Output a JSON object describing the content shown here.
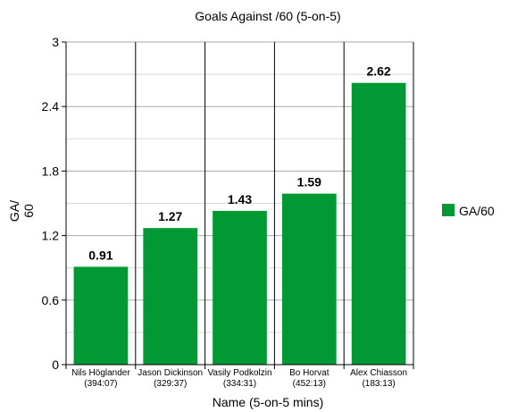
{
  "chart_data": {
    "type": "bar",
    "title": "Goals Against /60 (5-on-5)",
    "xlabel": "Name (5-on-5 mins)",
    "ylabel": [
      "GA/",
      "60"
    ],
    "ylim": [
      0,
      3
    ],
    "yticks": [
      0,
      0.6,
      1.2,
      1.8,
      2.4,
      3
    ],
    "ytick_labels": [
      "0",
      "0.6",
      "1.2",
      "1.8",
      "2.4",
      "3"
    ],
    "grid": true,
    "legend_position": "right",
    "categories": [
      {
        "name": "Nils Höglander",
        "mins": "(394:07)"
      },
      {
        "name": "Jason Dickinson",
        "mins": "(329:37)"
      },
      {
        "name": "Vasily Podkolzin",
        "mins": "(334:31)"
      },
      {
        "name": "Bo Horvat",
        "mins": "(452:13)"
      },
      {
        "name": "Alex Chiasson",
        "mins": "(183:13)"
      }
    ],
    "series": [
      {
        "name": "GA/60",
        "color": "#009933",
        "values": [
          0.91,
          1.27,
          1.43,
          1.59,
          2.62
        ],
        "labels": [
          "0.91",
          "1.27",
          "1.43",
          "1.59",
          "2.62"
        ]
      }
    ]
  }
}
